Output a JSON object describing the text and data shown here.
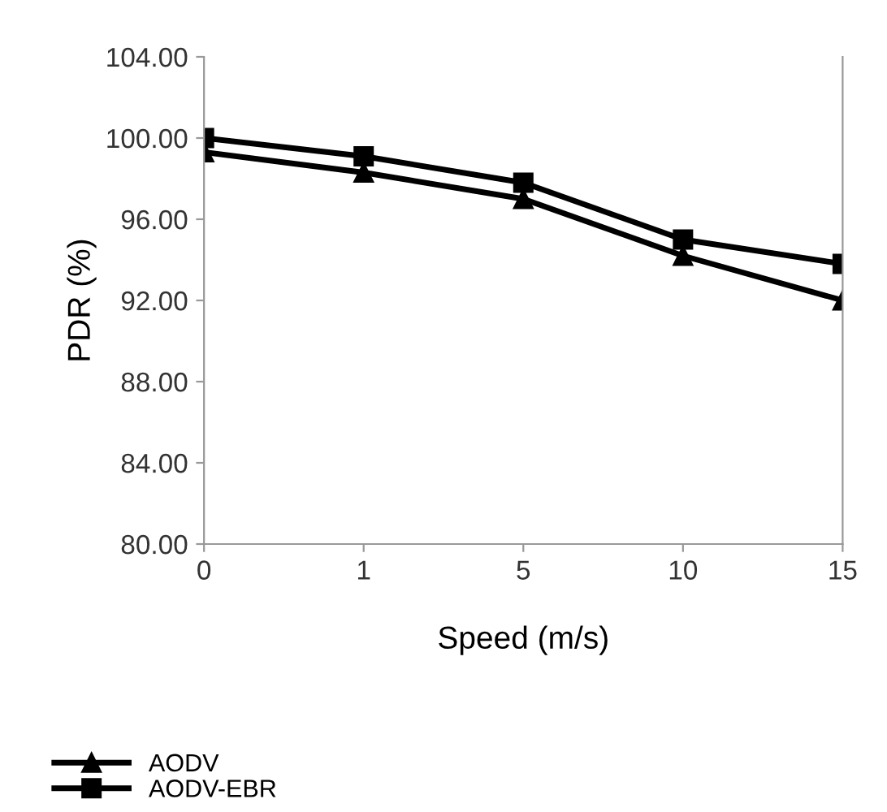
{
  "chart_data": {
    "type": "line",
    "xlabel": "Speed (m/s)",
    "ylabel": "PDR (%)",
    "categories": [
      "0",
      "1",
      "5",
      "10",
      "15"
    ],
    "series": [
      {
        "name": "AODV",
        "color": "#000000",
        "marker": "triangle",
        "values": [
          99.3,
          98.3,
          97.0,
          94.2,
          92.0
        ]
      },
      {
        "name": "AODV-EBR",
        "color": "#000000",
        "marker": "square",
        "values": [
          100.0,
          99.1,
          97.8,
          95.0,
          93.8
        ]
      }
    ],
    "ylim": [
      80,
      104
    ],
    "yticks": [
      {
        "value": 80,
        "label": "80.00"
      },
      {
        "value": 84,
        "label": "84.00"
      },
      {
        "value": 88,
        "label": "88.00"
      },
      {
        "value": 92,
        "label": "92.00"
      },
      {
        "value": 96,
        "label": "96.00"
      },
      {
        "value": 100,
        "label": "100.00"
      },
      {
        "value": 104,
        "label": "104.00"
      }
    ],
    "grid": false,
    "legend": "bottom left",
    "line_style": "solid"
  }
}
